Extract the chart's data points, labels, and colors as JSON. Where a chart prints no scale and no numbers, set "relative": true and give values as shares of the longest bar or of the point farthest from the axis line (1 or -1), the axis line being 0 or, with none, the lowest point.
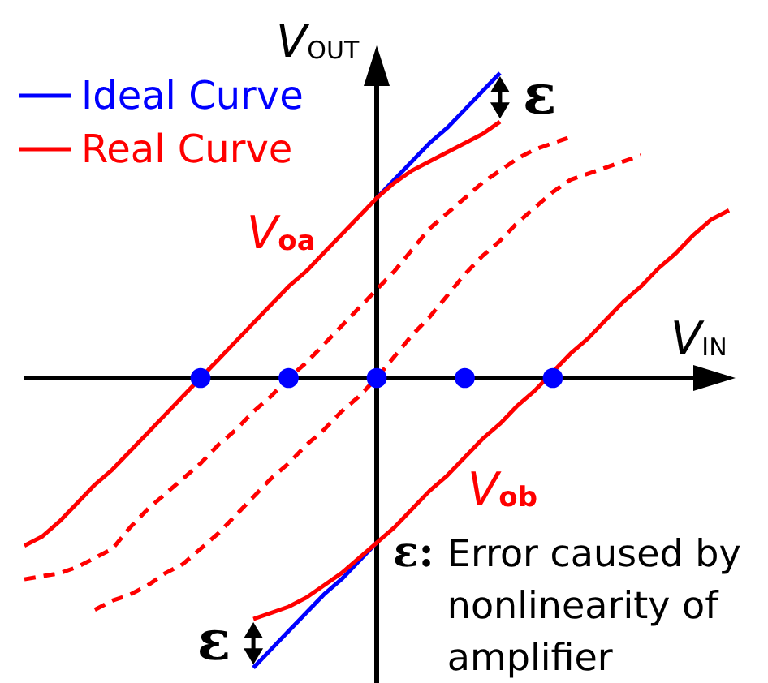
{
  "chart_data": {
    "type": "line",
    "relative": true,
    "xlabel": "V$_{IN}$",
    "ylabel": "V$_{OUT}$",
    "legend": "top left",
    "categories": [
      null,
      null,
      null,
      null,
      null,
      null,
      null,
      null,
      null,
      null,
      null,
      null,
      null,
      null,
      null,
      null,
      null,
      null,
      null,
      null,
      null,
      null,
      null,
      null,
      null,
      null,
      null,
      null,
      null,
      null,
      null,
      null,
      null,
      null,
      null,
      null,
      null,
      null,
      null,
      null,
      null
    ],
    "series": [
      {
        "name": "Ideal Curve",
        "color": "#0000ff",
        "values": [
          null,
          null,
          null,
          null,
          null,
          null,
          null,
          null,
          null,
          null,
          null,
          null,
          null,
          null,
          null,
          null,
          null,
          null,
          null,
          null,
          0.59,
          0.65,
          0.71,
          0.77,
          0.82,
          0.88,
          0.94,
          1.0,
          null,
          null,
          null,
          null,
          null,
          null,
          null,
          null,
          null,
          null,
          null,
          null,
          null
        ]
      },
      {
        "color": "#0000ff",
        "values": [
          null,
          null,
          null,
          null,
          null,
          null,
          null,
          null,
          null,
          null,
          null,
          null,
          null,
          -0.95,
          -0.89,
          -0.83,
          -0.77,
          -0.71,
          -0.66,
          -0.6,
          -0.54,
          null,
          null,
          null,
          null,
          null,
          null,
          null,
          null,
          null,
          null,
          null,
          null,
          null,
          null,
          null,
          null,
          null,
          null,
          null,
          null
        ]
      },
      {
        "name": "Real Curve",
        "color": "#ff0000",
        "values": [
          -0.55,
          -0.52,
          -0.47,
          -0.41,
          -0.35,
          -0.3,
          -0.24,
          -0.18,
          -0.12,
          -0.06,
          0,
          0.06,
          0.12,
          0.18,
          0.24,
          0.3,
          0.35,
          0.41,
          0.47,
          0.53,
          0.59,
          0.64,
          0.68,
          0.71,
          0.74,
          0.77,
          0.8,
          0.84,
          null,
          null,
          null,
          null,
          null,
          null,
          null,
          null,
          null,
          null,
          null,
          null,
          null
        ]
      },
      {
        "color": "#ff0000",
        "values": [
          null,
          null,
          null,
          null,
          null,
          null,
          null,
          null,
          null,
          null,
          null,
          null,
          null,
          -0.79,
          -0.77,
          -0.75,
          -0.72,
          -0.68,
          -0.64,
          -0.59,
          -0.54,
          -0.49,
          -0.43,
          -0.37,
          -0.32,
          -0.26,
          -0.2,
          -0.15,
          -0.09,
          -0.04,
          0.02,
          0.08,
          0.13,
          0.19,
          0.25,
          0.3,
          0.36,
          0.41,
          0.47,
          0.52,
          0.55
        ]
      },
      {
        "color": "#ff0000",
        "line_style": "dashed",
        "values": [
          -0.66,
          -0.65,
          -0.64,
          -0.62,
          -0.59,
          -0.56,
          -0.49,
          -0.43,
          -0.38,
          -0.33,
          -0.28,
          -0.22,
          -0.17,
          -0.11,
          -0.06,
          0,
          0.05,
          0.11,
          0.17,
          0.23,
          0.29,
          0.35,
          0.42,
          0.49,
          0.54,
          0.59,
          0.64,
          0.68,
          0.72,
          0.75,
          0.77,
          0.79,
          null,
          null,
          null,
          null,
          null,
          null,
          null,
          null,
          null
        ]
      },
      {
        "color": "#ff0000",
        "line_style": "dashed",
        "values": [
          null,
          null,
          null,
          null,
          -0.76,
          -0.73,
          -0.71,
          -0.68,
          -0.64,
          -0.61,
          -0.56,
          -0.51,
          -0.45,
          -0.39,
          -0.33,
          -0.28,
          -0.22,
          -0.17,
          -0.11,
          -0.06,
          0,
          0.07,
          0.14,
          0.2,
          0.27,
          0.34,
          0.4,
          0.45,
          0.51,
          0.56,
          0.61,
          0.65,
          0.67,
          0.69,
          0.71,
          0.73,
          null,
          null,
          null,
          null,
          null
        ]
      },
      {
        "marker": "circle",
        "color": "#0000ff",
        "values": [
          null,
          null,
          null,
          null,
          null,
          null,
          null,
          null,
          null,
          null,
          0,
          null,
          null,
          null,
          null,
          0,
          null,
          null,
          null,
          null,
          0,
          null,
          null,
          null,
          null,
          0,
          null,
          null,
          null,
          null,
          0,
          null,
          null,
          null,
          null,
          null,
          null,
          null,
          null,
          null,
          null
        ]
      }
    ],
    "annotations": [
      "V$_{oa}$",
      "V$_{ob}$",
      "ε",
      "ε",
      "ε: Error caused by nonlinearity of amplifier"
    ]
  }
}
